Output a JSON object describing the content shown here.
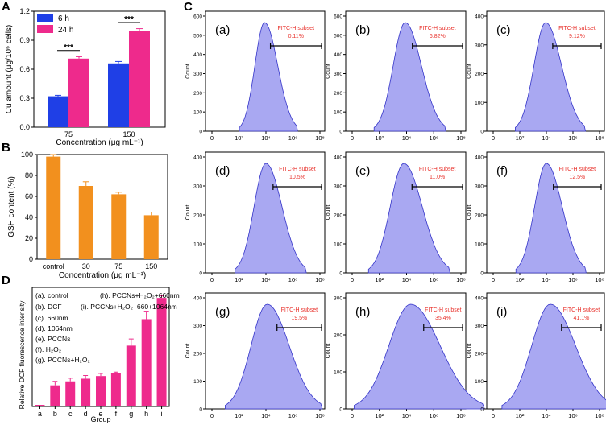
{
  "panel_labels": [
    "A",
    "B",
    "C",
    "D"
  ],
  "chart_data": [
    {
      "id": "A",
      "type": "bar",
      "categories": [
        "75",
        "150"
      ],
      "series": [
        {
          "name": "6 h",
          "color": "#1f3fe6",
          "values": [
            0.32,
            0.66
          ],
          "errors": [
            0.01,
            0.02
          ]
        },
        {
          "name": "24 h",
          "color": "#ee2a8c",
          "values": [
            0.71,
            1.0
          ],
          "errors": [
            0.02,
            0.02
          ]
        }
      ],
      "xlabel": "Concentration (μg mL⁻¹)",
      "ylabel": "Cu amount (μg/10⁶ cells)",
      "ylim": [
        0,
        1.2
      ],
      "yticks": [
        "0.0",
        "0.3",
        "0.6",
        "0.9",
        "1.2"
      ],
      "annotations": [
        "***",
        "***"
      ],
      "legend": [
        "6 h",
        "24 h"
      ]
    },
    {
      "id": "B",
      "type": "bar",
      "categories": [
        "control",
        "30",
        "75",
        "150"
      ],
      "values": [
        98,
        70,
        62,
        42
      ],
      "errors": [
        2,
        4,
        2,
        3
      ],
      "color": "#f2901e",
      "xlabel": "Concentration (μg mL⁻¹)",
      "ylabel": "GSH content (%)",
      "ylim": [
        0,
        100
      ],
      "yticks": [
        "0",
        "20",
        "40",
        "60",
        "80",
        "100"
      ]
    },
    {
      "id": "D",
      "type": "bar",
      "categories": [
        "a",
        "b",
        "c",
        "d",
        "e",
        "f",
        "g",
        "h",
        "i"
      ],
      "values": [
        0,
        8,
        9.5,
        10.5,
        11.5,
        12.5,
        23,
        33,
        41
      ],
      "errors": [
        0,
        1.5,
        1.2,
        1.2,
        1.0,
        0.5,
        2.5,
        3,
        0.8
      ],
      "color": "#ee2a8c",
      "xlabel": "Group",
      "ylabel": "Relative DCF fluorescence intensity",
      "ylim": [
        0,
        45
      ],
      "legend_lines": [
        "(a). control",
        "(h). PCCNs+H₂O₂+660nm",
        "(b). DCF",
        "(i). PCCNs+H₂O₂+660+1064nm",
        "(c). 660nm",
        "(d). 1064nm",
        "(e). PCCNs",
        "(f). H₂O₂",
        "(g). PCCNs+H₂O₂"
      ]
    },
    {
      "id": "C",
      "type": "histogram",
      "ylabel": "Count",
      "xticks": [
        "0",
        "10²",
        "10⁴",
        "10⁶",
        "10⁸"
      ],
      "gate_label": "FITC-H subset",
      "panels": [
        {
          "label": "(a)",
          "percent": "0.11%",
          "peak_log": 3.9,
          "width": 0.18,
          "yscale": 600,
          "yticks": [
            "0",
            "100",
            "200",
            "300",
            "400",
            "500",
            "600"
          ]
        },
        {
          "label": "(b)",
          "percent": "6.82%",
          "peak_log": 3.9,
          "width": 0.22,
          "yscale": 600,
          "yticks": [
            "0",
            "100",
            "200",
            "300",
            "400",
            "500",
            "600"
          ]
        },
        {
          "label": "(c)",
          "percent": "9.12%",
          "peak_log": 3.95,
          "width": 0.22,
          "yscale": 400,
          "yticks": [
            "0",
            "100",
            "200",
            "300",
            "400"
          ]
        },
        {
          "label": "(d)",
          "percent": "10.5%",
          "peak_log": 4.0,
          "width": 0.22,
          "yscale": 400,
          "yticks": [
            "0",
            "100",
            "200",
            "300",
            "400"
          ]
        },
        {
          "label": "(e)",
          "percent": "11.0%",
          "peak_log": 3.8,
          "width": 0.25,
          "yscale": 400,
          "yticks": [
            "0",
            "100",
            "200",
            "300",
            "400"
          ]
        },
        {
          "label": "(f)",
          "percent": "12.5%",
          "peak_log": 4.0,
          "width": 0.22,
          "yscale": 400,
          "yticks": [
            "0",
            "100",
            "200",
            "300",
            "400"
          ]
        },
        {
          "label": "(g)",
          "percent": "19.5%",
          "peak_log": 4.1,
          "width": 0.3,
          "yscale": 400,
          "yticks": [
            "0",
            "100",
            "200",
            "300",
            "400"
          ]
        },
        {
          "label": "(h)",
          "percent": "35.4%",
          "peak_log": 4.3,
          "width": 0.4,
          "yscale": 300,
          "yticks": [
            "0",
            "100",
            "200",
            "300"
          ]
        },
        {
          "label": "(i)",
          "percent": "41.1%",
          "peak_log": 4.3,
          "width": 0.35,
          "yscale": 400,
          "yticks": [
            "0",
            "100",
            "200",
            "300",
            "400"
          ]
        }
      ]
    }
  ]
}
